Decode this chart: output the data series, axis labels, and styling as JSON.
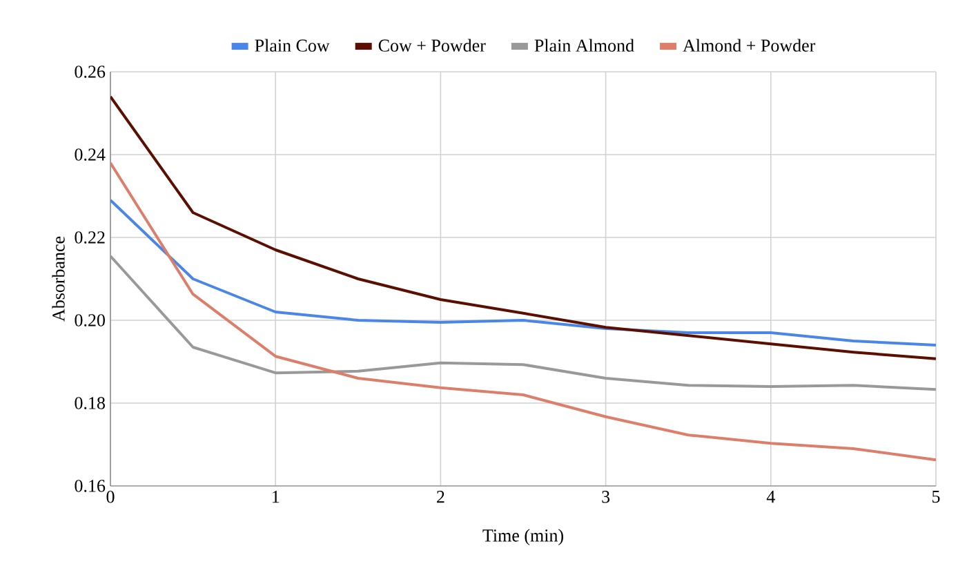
{
  "chart_data": {
    "type": "line",
    "xlabel": "Time (min)",
    "ylabel": "Absorbance",
    "x": [
      0,
      0.5,
      1,
      1.5,
      2,
      2.5,
      3,
      3.5,
      4,
      4.5,
      5
    ],
    "series": [
      {
        "name": "Plain Cow",
        "color": "#4a86e8",
        "values": [
          0.229,
          0.21,
          0.202,
          0.2,
          0.1995,
          0.2,
          0.198,
          0.197,
          0.197,
          0.195,
          0.194
        ]
      },
      {
        "name": "Cow + Powder",
        "color": "#5b0f00",
        "values": [
          0.254,
          0.226,
          0.217,
          0.21,
          0.205,
          0.2017,
          0.1983,
          0.1963,
          0.1943,
          0.1923,
          0.1907
        ]
      },
      {
        "name": "Plain Almond",
        "color": "#999999",
        "values": [
          0.2155,
          0.1935,
          0.1873,
          0.1877,
          0.1897,
          0.1893,
          0.186,
          0.1843,
          0.184,
          0.1843,
          0.1833
        ]
      },
      {
        "name": "Almond + Powder",
        "color": "#dd7e6b",
        "values": [
          0.238,
          0.2063,
          0.1913,
          0.186,
          0.1837,
          0.182,
          0.1767,
          0.1723,
          0.1703,
          0.169,
          0.1663
        ]
      }
    ],
    "xlim": [
      0,
      5
    ],
    "ylim": [
      0.16,
      0.26
    ],
    "xticks": [
      0,
      1,
      2,
      3,
      4,
      5
    ],
    "yticks": [
      {
        "value": 0.16,
        "label": "0.16"
      },
      {
        "value": 0.18,
        "label": "0.18"
      },
      {
        "value": 0.2,
        "label": "0.20"
      },
      {
        "value": 0.22,
        "label": "0.22"
      },
      {
        "value": 0.24,
        "label": "0.24"
      },
      {
        "value": 0.26,
        "label": "0.26"
      }
    ],
    "grid": true,
    "legend": "top",
    "marker": "none",
    "line_style": "solid"
  }
}
